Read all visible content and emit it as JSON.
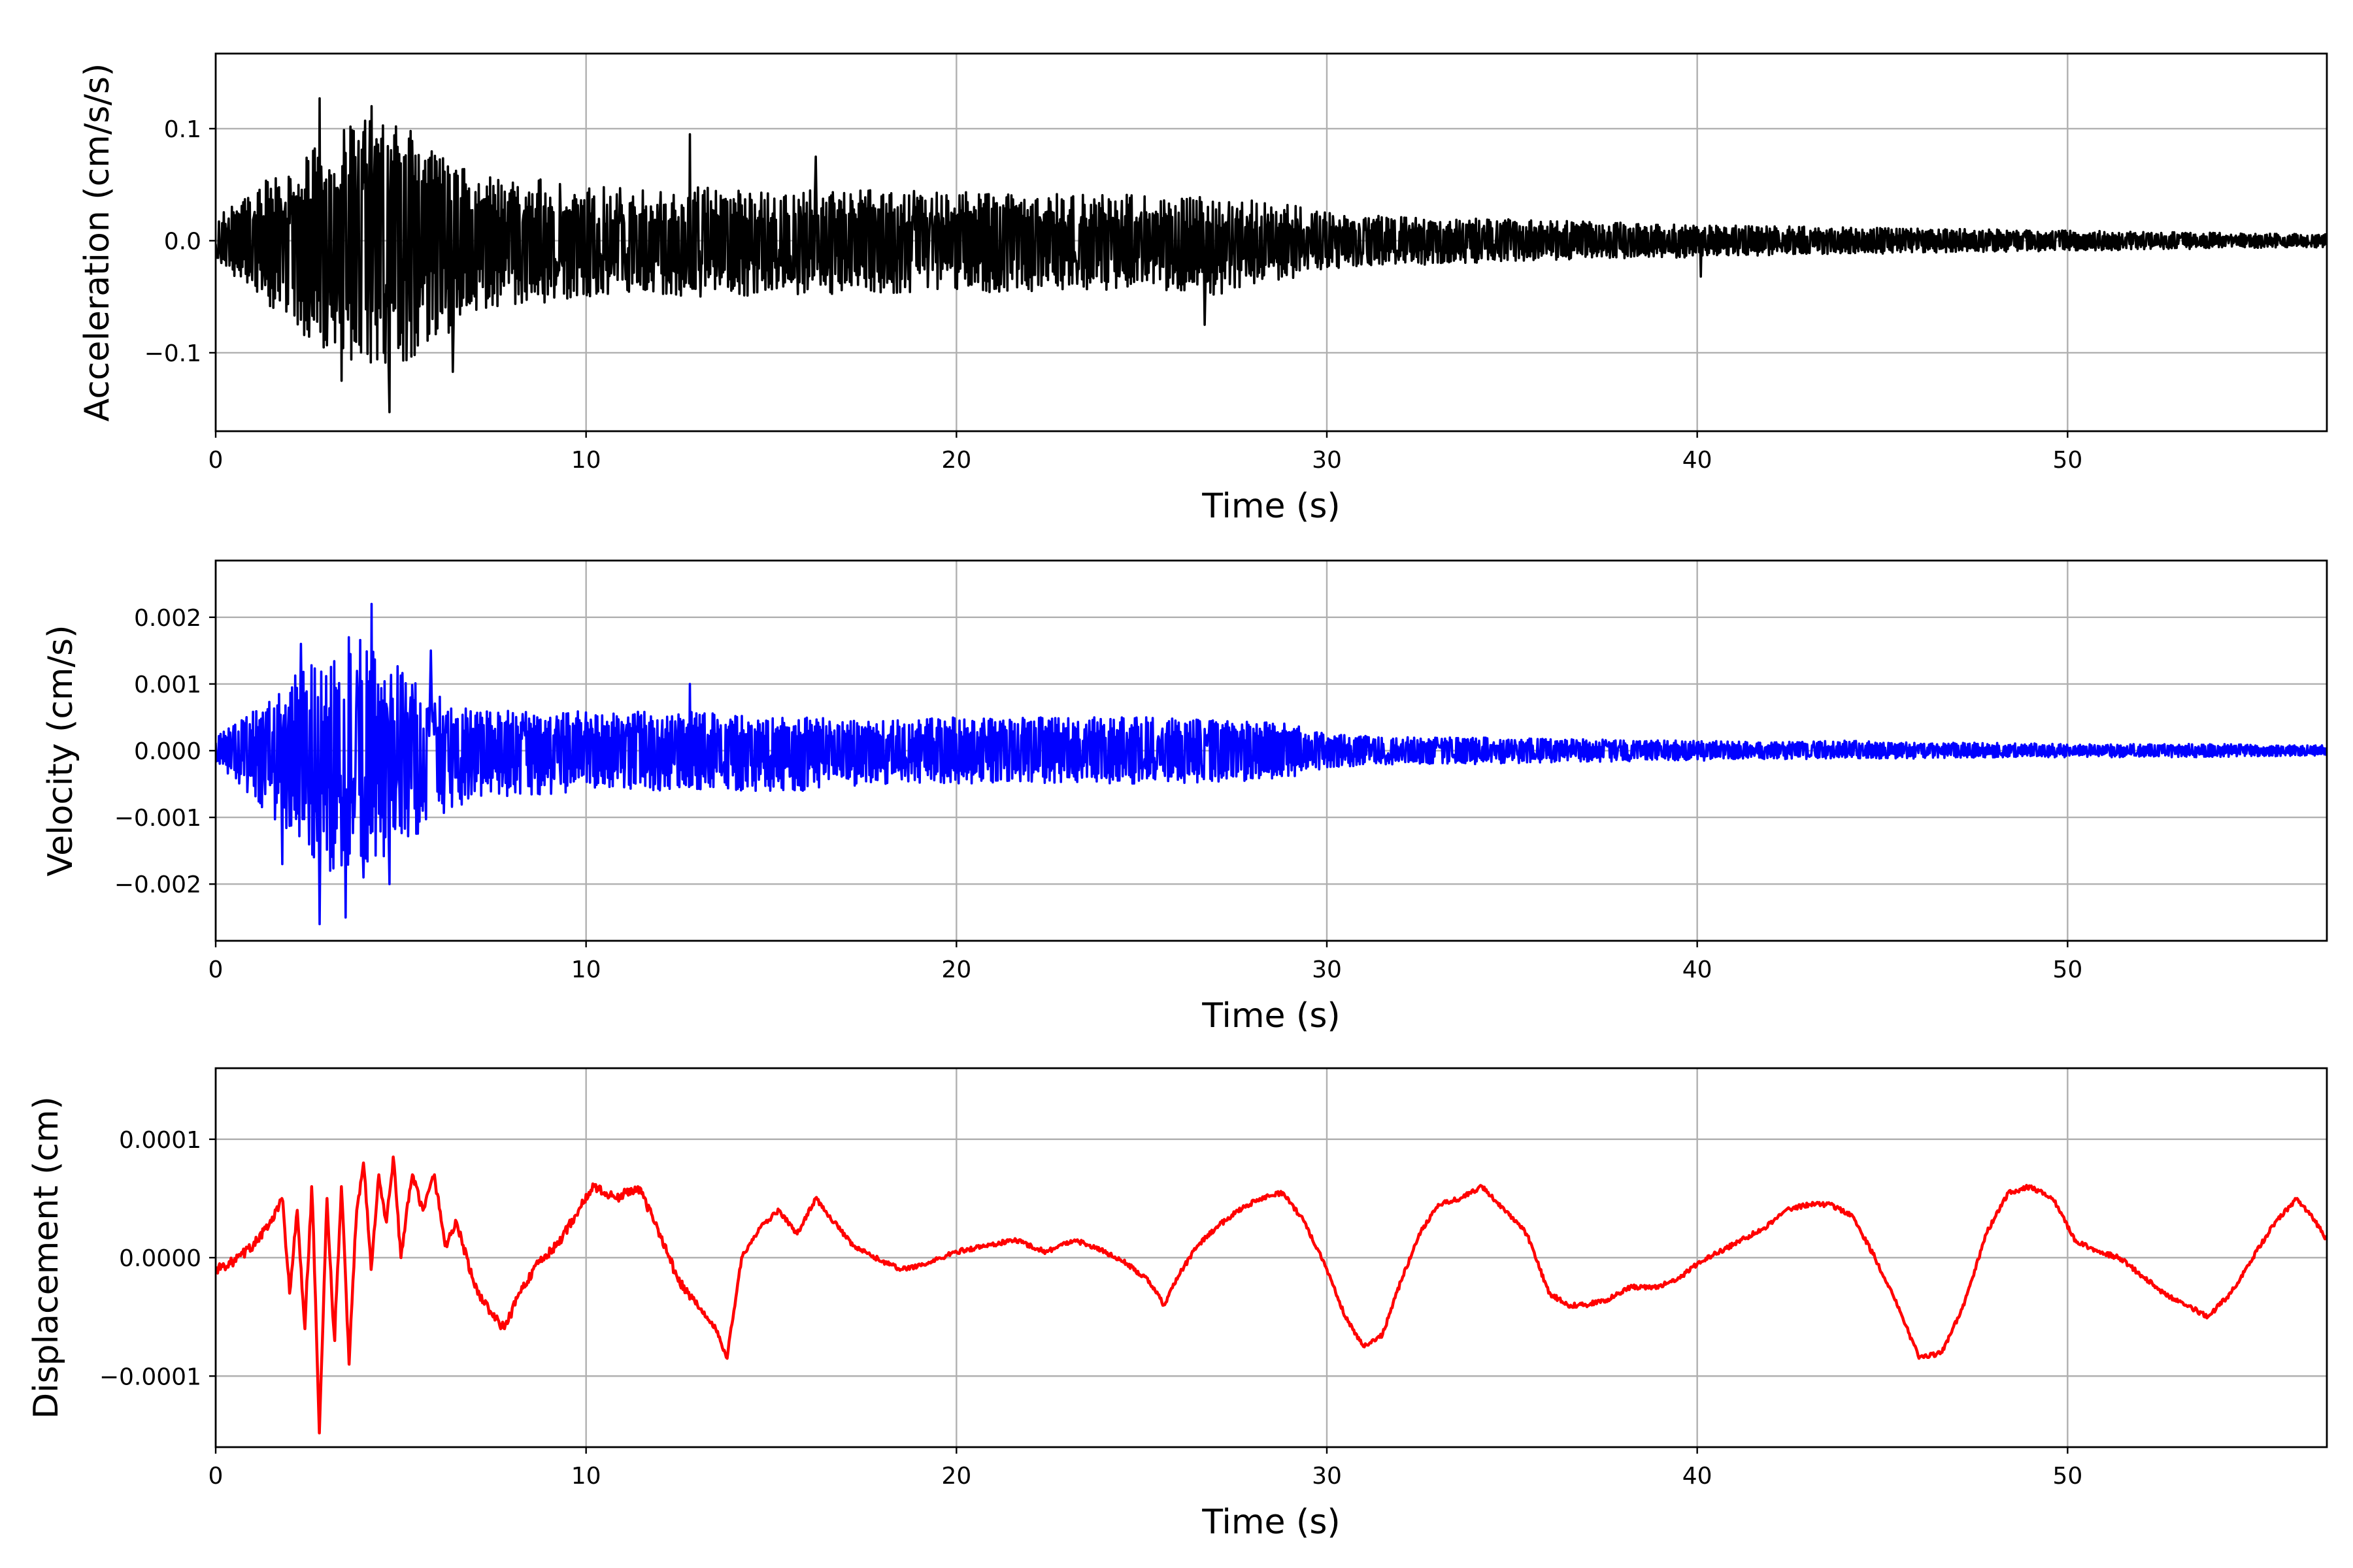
{
  "chart_data": [
    {
      "type": "line",
      "title": "",
      "xlabel": "Time (s)",
      "ylabel": "Acceleration (cm/s/s)",
      "xlim": [
        0,
        57
      ],
      "ylim": [
        -0.17,
        0.167
      ],
      "grid": true,
      "color": "#000000",
      "x_ticks": [
        0,
        10,
        20,
        30,
        40,
        50
      ],
      "x_tick_labels": [
        "0",
        "10",
        "20",
        "30",
        "40",
        "50"
      ],
      "y_ticks": [
        -0.1,
        0.0,
        0.1
      ],
      "y_tick_labels": [
        "−0.1",
        "0.0",
        "0.1"
      ],
      "series": [
        {
          "envelope": {
            "t": [
              0,
              1,
              2,
              3,
              4,
              5,
              6,
              7,
              8,
              9,
              10,
              12,
              13,
              14,
              16,
              18,
              20,
              22,
              24,
              26,
              27,
              28,
              29,
              30,
              32,
              34,
              36,
              38,
              40,
              42,
              44,
              46,
              48,
              50,
              52,
              54,
              56,
              57
            ],
            "upper": [
              0.02,
              0.045,
              0.07,
              0.095,
              0.11,
              0.105,
              0.08,
              0.06,
              0.055,
              0.055,
              0.05,
              0.045,
              0.05,
              0.045,
              0.045,
              0.045,
              0.045,
              0.042,
              0.042,
              0.04,
              0.038,
              0.036,
              0.033,
              0.025,
              0.022,
              0.02,
              0.018,
              0.016,
              0.014,
              0.013,
              0.012,
              0.011,
              0.01,
              0.009,
              0.008,
              0.007,
              0.006,
              0.006
            ],
            "lower": [
              -0.02,
              -0.045,
              -0.075,
              -0.1,
              -0.115,
              -0.11,
              -0.09,
              -0.065,
              -0.06,
              -0.055,
              -0.05,
              -0.048,
              -0.05,
              -0.05,
              -0.048,
              -0.048,
              -0.048,
              -0.045,
              -0.045,
              -0.045,
              -0.05,
              -0.04,
              -0.035,
              -0.025,
              -0.022,
              -0.02,
              -0.018,
              -0.016,
              -0.015,
              -0.013,
              -0.012,
              -0.011,
              -0.01,
              -0.009,
              -0.008,
              -0.007,
              -0.006,
              -0.006
            ]
          },
          "peaks": [
            {
              "t": 2.8,
              "v": 0.127
            },
            {
              "t": 4.7,
              "v": 0.127
            },
            {
              "t": 4.2,
              "v": 0.12
            },
            {
              "t": 12.8,
              "v": 0.095
            },
            {
              "t": 16.2,
              "v": 0.075
            },
            {
              "t": 4.7,
              "v": -0.153
            },
            {
              "t": 3.4,
              "v": -0.125
            },
            {
              "t": 6.4,
              "v": -0.117
            },
            {
              "t": 26.7,
              "v": -0.075
            },
            {
              "t": 40.1,
              "v": -0.032
            }
          ]
        }
      ]
    },
    {
      "type": "line",
      "title": "",
      "xlabel": "Time (s)",
      "ylabel": "Velocity (cm/s)",
      "xlim": [
        0,
        57
      ],
      "ylim": [
        -0.00285,
        0.00285
      ],
      "grid": true,
      "color": "#0000ff",
      "x_ticks": [
        0,
        10,
        20,
        30,
        40,
        50
      ],
      "x_tick_labels": [
        "0",
        "10",
        "20",
        "30",
        "40",
        "50"
      ],
      "y_ticks": [
        -0.002,
        -0.001,
        0.0,
        0.001,
        0.002
      ],
      "y_tick_labels": [
        "−0.002",
        "−0.001",
        "0.000",
        "0.001",
        "0.002"
      ],
      "series": [
        {
          "envelope": {
            "t": [
              0,
              1,
              2,
              3,
              4,
              5,
              6,
              7,
              8,
              10,
              12,
              14,
              16,
              18,
              20,
              22,
              24,
              26,
              28,
              29,
              30,
              32,
              34,
              36,
              38,
              40,
              42,
              44,
              46,
              48,
              50,
              52,
              54,
              56,
              57
            ],
            "upper": [
              0.0002,
              0.0006,
              0.0011,
              0.0015,
              0.0017,
              0.0013,
              0.0009,
              0.0006,
              0.0006,
              0.0006,
              0.0006,
              0.00055,
              0.0005,
              0.00045,
              0.0005,
              0.0005,
              0.0005,
              0.0005,
              0.00045,
              0.0004,
              0.00025,
              0.0002,
              0.0002,
              0.00018,
              0.00016,
              0.00015,
              0.00013,
              0.00015,
              0.00012,
              0.00012,
              0.0001,
              0.0001,
              0.0001,
              8e-05,
              8e-05
            ],
            "lower": [
              -0.0002,
              -0.0007,
              -0.0013,
              -0.0018,
              -0.0019,
              -0.0015,
              -0.001,
              -0.0007,
              -0.0007,
              -0.0006,
              -0.0006,
              -0.0006,
              -0.0006,
              -0.0005,
              -0.0005,
              -0.0005,
              -0.0005,
              -0.0005,
              -0.00045,
              -0.0004,
              -0.00025,
              -0.0002,
              -0.0002,
              -0.00018,
              -0.00016,
              -0.00015,
              -0.00013,
              -0.00012,
              -0.00012,
              -0.0001,
              -0.0001,
              -0.0001,
              -0.0001,
              -8e-05,
              -8e-05
            ]
          },
          "peaks": [
            {
              "t": 4.2,
              "v": 0.0022
            },
            {
              "t": 2.3,
              "v": 0.0016
            },
            {
              "t": 3.6,
              "v": 0.0017
            },
            {
              "t": 5.8,
              "v": 0.0015
            },
            {
              "t": 12.8,
              "v": 0.001
            },
            {
              "t": 2.8,
              "v": -0.0026
            },
            {
              "t": 3.5,
              "v": -0.0025
            },
            {
              "t": 4.7,
              "v": -0.002
            },
            {
              "t": 4.0,
              "v": -0.0019
            },
            {
              "t": 1.8,
              "v": -0.0017
            }
          ]
        }
      ]
    },
    {
      "type": "line",
      "title": "",
      "xlabel": "Time (s)",
      "ylabel": "Displacement (cm)",
      "xlim": [
        0,
        57
      ],
      "ylim": [
        -0.00016,
        0.00016
      ],
      "grid": true,
      "color": "#ff0000",
      "x_ticks": [
        0,
        10,
        20,
        30,
        40,
        50
      ],
      "x_tick_labels": [
        "0",
        "10",
        "20",
        "30",
        "40",
        "50"
      ],
      "y_ticks": [
        -0.0001,
        0.0,
        0.0001
      ],
      "y_tick_labels": [
        "−0.0001",
        "0.0000",
        "0.0001"
      ],
      "series": [
        {
          "x": [
            0,
            0.5,
            1.0,
            1.5,
            1.8,
            2.0,
            2.2,
            2.4,
            2.6,
            2.8,
            3.0,
            3.2,
            3.4,
            3.6,
            3.8,
            4.0,
            4.2,
            4.4,
            4.6,
            4.8,
            5.0,
            5.3,
            5.6,
            5.9,
            6.2,
            6.5,
            7.0,
            7.5,
            7.8,
            8.2,
            8.7,
            9.2,
            9.7,
            10.2,
            10.8,
            11.4,
            12.0,
            12.5,
            13.0,
            13.5,
            13.8,
            14.2,
            14.7,
            15.2,
            15.7,
            16.2,
            16.7,
            17.2,
            17.8,
            18.5,
            19.2,
            20.0,
            20.8,
            21.6,
            22.4,
            23.2,
            24.0,
            24.6,
            25.2,
            25.6,
            26.0,
            26.5,
            27.0,
            27.6,
            28.2,
            28.8,
            29.4,
            30.0,
            30.5,
            31.0,
            31.5,
            32.0,
            32.5,
            33.0,
            33.6,
            34.2,
            34.8,
            35.4,
            36.0,
            36.5,
            37.0,
            37.6,
            38.2,
            38.8,
            39.4,
            40.0,
            40.6,
            41.2,
            41.8,
            42.4,
            43.0,
            43.6,
            44.2,
            44.8,
            45.4,
            46.0,
            46.6,
            47.2,
            47.8,
            48.4,
            49.0,
            49.6,
            50.2,
            50.8,
            51.4,
            52.0,
            52.6,
            53.2,
            53.8,
            54.4,
            55.0,
            55.6,
            56.2,
            56.7,
            57.0
          ],
          "y": [
            -1e-05,
            -3e-06,
            1e-05,
            3e-05,
            5e-05,
            -3e-05,
            4e-05,
            -6e-05,
            6e-05,
            -0.000148,
            5e-05,
            -7e-05,
            6e-05,
            -9e-05,
            4e-05,
            8e-05,
            -1e-05,
            7e-05,
            3e-05,
            8.5e-05,
            0.0,
            7e-05,
            4e-05,
            7e-05,
            1e-05,
            3e-05,
            -2.5e-05,
            -5e-05,
            -6e-05,
            -3e-05,
            -5e-06,
            1e-05,
            3.5e-05,
            6e-05,
            5e-05,
            6e-05,
            2e-05,
            -2e-05,
            -4e-05,
            -6e-05,
            -8.5e-05,
            0.0,
            2.5e-05,
            4e-05,
            2e-05,
            5e-05,
            3e-05,
            1e-05,
            0.0,
            -1e-05,
            -5e-06,
            5e-06,
            1e-05,
            1.5e-05,
            5e-06,
            1.5e-05,
            5e-06,
            -5e-06,
            -2e-05,
            -4e-05,
            -1.5e-05,
            1e-05,
            2.5e-05,
            4e-05,
            5e-05,
            5.5e-05,
            3e-05,
            -1e-05,
            -5e-05,
            -7.5e-05,
            -6.5e-05,
            -2e-05,
            2e-05,
            4.5e-05,
            5e-05,
            6e-05,
            4e-05,
            2e-05,
            -3e-05,
            -4e-05,
            -4e-05,
            -3.5e-05,
            -2.5e-05,
            -2.5e-05,
            -2e-05,
            -5e-06,
            5e-06,
            1.5e-05,
            2.5e-05,
            4e-05,
            4.5e-05,
            4.5e-05,
            3.5e-05,
            0.0,
            -4e-05,
            -8.5e-05,
            -8e-05,
            -4e-05,
            2e-05,
            5.5e-05,
            6e-05,
            5e-05,
            1.5e-05,
            5e-06,
            0.0,
            -1.5e-05,
            -3e-05,
            -4e-05,
            -5e-05,
            -3e-05,
            0.0,
            3e-05,
            5e-05,
            3e-05,
            1.5e-05
          ]
        }
      ]
    }
  ]
}
